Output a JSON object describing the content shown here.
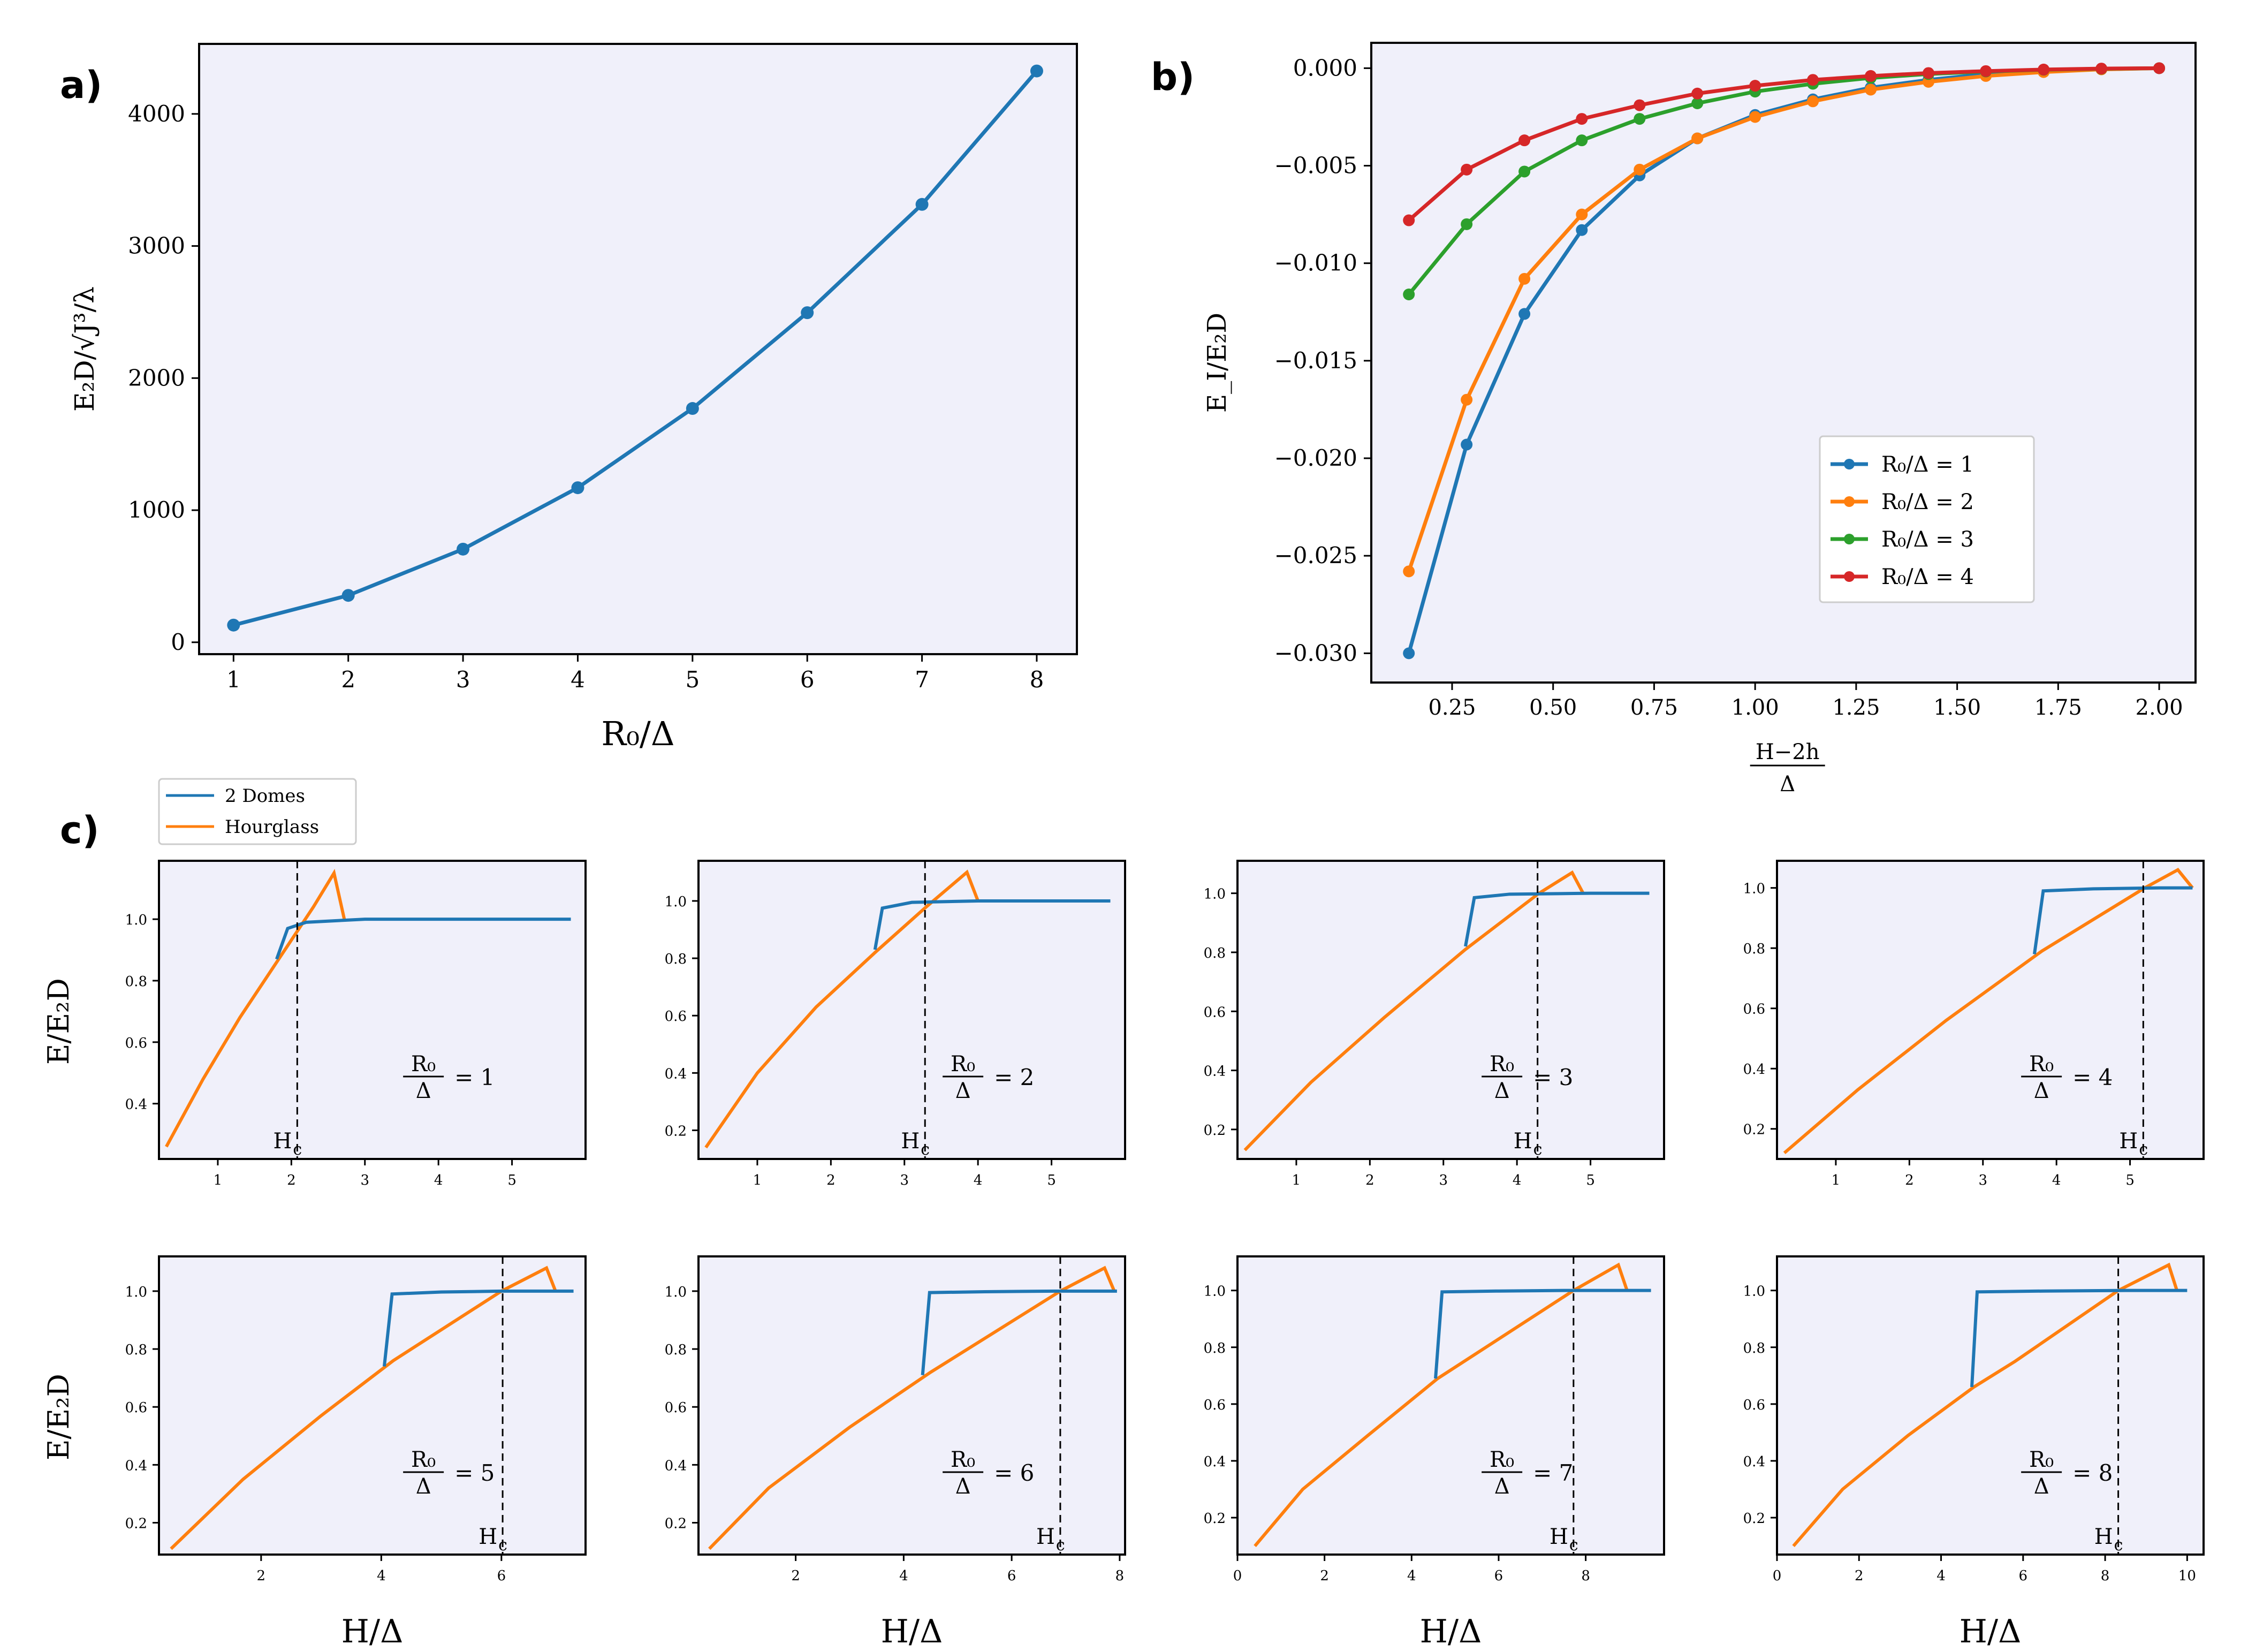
{
  "panel_labels": [
    "a)",
    "b)",
    "c)"
  ],
  "chart_data": [
    {
      "id": "a",
      "type": "line",
      "xlabel": "R₀/Δ",
      "ylabel": "E₂D/√J³/λ",
      "xlim": [
        0.7,
        8.35
      ],
      "ylim": [
        -90,
        4530
      ],
      "xticks": [
        1,
        2,
        3,
        4,
        5,
        6,
        7,
        8
      ],
      "xtick_labels": [
        "1",
        "2",
        "3",
        "4",
        "5",
        "6",
        "7",
        "8"
      ],
      "yticks": [
        0,
        1000,
        2000,
        3000,
        4000
      ],
      "ytick_labels": [
        "0",
        "1000",
        "2000",
        "3000",
        "4000"
      ],
      "series": [
        {
          "name": "E2D",
          "color": "#1f77b4",
          "x": [
            1,
            2,
            3,
            4,
            5,
            6,
            7,
            8
          ],
          "y": [
            130,
            355,
            705,
            1170,
            1770,
            2495,
            3315,
            4325
          ]
        }
      ]
    },
    {
      "id": "b",
      "type": "line",
      "xlabel_num": "H−2h",
      "xlabel_den": "Δ",
      "ylabel": "E_I/E₂D",
      "xlim": [
        0.05,
        2.09
      ],
      "ylim": [
        -0.0315,
        0.0013
      ],
      "xticks": [
        0.25,
        0.5,
        0.75,
        1.0,
        1.25,
        1.5,
        1.75,
        2.0
      ],
      "xtick_labels": [
        "0.25",
        "0.50",
        "0.75",
        "1.00",
        "1.25",
        "1.50",
        "1.75",
        "2.00"
      ],
      "yticks": [
        0,
        -0.005,
        -0.01,
        -0.015,
        -0.02,
        -0.025,
        -0.03
      ],
      "ytick_labels": [
        "0.000",
        "−0.005",
        "−0.010",
        "−0.015",
        "−0.020",
        "−0.025",
        "−0.030"
      ],
      "legend_position": "lower-right",
      "x": [
        0.143,
        0.286,
        0.429,
        0.571,
        0.714,
        0.857,
        1.0,
        1.143,
        1.286,
        1.429,
        1.571,
        1.714,
        1.857,
        2.0
      ],
      "series": [
        {
          "name": "R₀/Δ = 1",
          "color": "#1f77b4",
          "y": [
            -0.03,
            -0.0193,
            -0.0126,
            -0.0083,
            -0.0055,
            -0.0036,
            -0.0024,
            -0.0016,
            -0.001,
            -0.0006,
            -0.0003,
            -0.00015,
            -5e-05,
            0.0
          ]
        },
        {
          "name": "R₀/Δ = 2",
          "color": "#ff7f0e",
          "y": [
            -0.0258,
            -0.017,
            -0.0108,
            -0.0075,
            -0.0052,
            -0.0036,
            -0.0025,
            -0.0017,
            -0.0011,
            -0.0007,
            -0.0004,
            -0.0002,
            -6e-05,
            0.0
          ]
        },
        {
          "name": "R₀/Δ = 3",
          "color": "#2ca02c",
          "y": [
            -0.0116,
            -0.008,
            -0.0053,
            -0.0037,
            -0.0026,
            -0.0018,
            -0.0012,
            -0.0008,
            -0.0005,
            -0.0003,
            -0.00017,
            -8e-05,
            -3e-05,
            0.0
          ]
        },
        {
          "name": "R₀/Δ = 4",
          "color": "#d62728",
          "y": [
            -0.0078,
            -0.0052,
            -0.0037,
            -0.0026,
            -0.0019,
            -0.0013,
            -0.0009,
            -0.0006,
            -0.0004,
            -0.00025,
            -0.00015,
            -7e-05,
            -2e-05,
            0.0
          ]
        }
      ]
    },
    {
      "id": "c",
      "type": "line",
      "legend": [
        {
          "name": "2 Domes",
          "color": "#1f77b4"
        },
        {
          "name": "Hourglass",
          "color": "#ff7f0e"
        }
      ],
      "xlabel": "H/Δ",
      "ylabel": "E/E₂D",
      "marker_label": "H",
      "marker_sub": "c",
      "ratio_num": "R₀",
      "ratio_den": "Δ",
      "subplots": [
        {
          "r": "1",
          "xlim": [
            0.2,
            6.0
          ],
          "ylim": [
            0.22,
            1.19
          ],
          "xticks": [
            1,
            2,
            3,
            4,
            5
          ],
          "xtick_labels": [
            "1",
            "2",
            "3",
            "4",
            "5"
          ],
          "yticks": [
            0.4,
            0.6,
            0.8,
            1.0
          ],
          "ytick_labels": [
            "0.4",
            "0.6",
            "0.8",
            "1.0"
          ],
          "hc": 2.08,
          "domes": [
            [
              1.8,
              0.87
            ],
            [
              1.95,
              0.97
            ],
            [
              2.2,
              0.99
            ],
            [
              3.0,
              1.0
            ],
            [
              5.8,
              1.0
            ]
          ],
          "hourglass": [
            [
              0.3,
              0.26
            ],
            [
              0.8,
              0.48
            ],
            [
              1.3,
              0.68
            ],
            [
              1.8,
              0.86
            ],
            [
              2.3,
              1.04
            ],
            [
              2.58,
              1.15
            ],
            [
              2.72,
              1.0
            ]
          ]
        },
        {
          "r": "2",
          "xlim": [
            0.2,
            6.0
          ],
          "ylim": [
            0.1,
            1.14
          ],
          "xticks": [
            1,
            2,
            3,
            4,
            5
          ],
          "xtick_labels": [
            "1",
            "2",
            "3",
            "4",
            "5"
          ],
          "yticks": [
            0.2,
            0.4,
            0.6,
            0.8,
            1.0
          ],
          "ytick_labels": [
            "0.2",
            "0.4",
            "0.6",
            "0.8",
            "1.0"
          ],
          "hc": 3.28,
          "domes": [
            [
              2.6,
              0.83
            ],
            [
              2.7,
              0.975
            ],
            [
              3.1,
              0.995
            ],
            [
              4.0,
              1.0
            ],
            [
              5.8,
              1.0
            ]
          ],
          "hourglass": [
            [
              0.3,
              0.14
            ],
            [
              1.0,
              0.4
            ],
            [
              1.8,
              0.63
            ],
            [
              2.6,
              0.82
            ],
            [
              3.3,
              0.98
            ],
            [
              3.85,
              1.1
            ],
            [
              4.0,
              1.0
            ]
          ]
        },
        {
          "r": "3",
          "xlim": [
            0.2,
            6.0
          ],
          "ylim": [
            0.1,
            1.11
          ],
          "xticks": [
            1,
            2,
            3,
            4,
            5
          ],
          "xtick_labels": [
            "1",
            "2",
            "3",
            "4",
            "5"
          ],
          "yticks": [
            0.2,
            0.4,
            0.6,
            0.8,
            1.0
          ],
          "ytick_labels": [
            "0.2",
            "0.4",
            "0.6",
            "0.8",
            "1.0"
          ],
          "hc": 4.28,
          "domes": [
            [
              3.3,
              0.82
            ],
            [
              3.42,
              0.985
            ],
            [
              3.9,
              0.997
            ],
            [
              5.0,
              1.0
            ],
            [
              5.8,
              1.0
            ]
          ],
          "hourglass": [
            [
              0.3,
              0.13
            ],
            [
              1.2,
              0.36
            ],
            [
              2.2,
              0.58
            ],
            [
              3.3,
              0.81
            ],
            [
              4.3,
              1.0
            ],
            [
              4.75,
              1.07
            ],
            [
              4.9,
              1.0
            ]
          ]
        },
        {
          "r": "4",
          "xlim": [
            0.2,
            6.0
          ],
          "ylim": [
            0.1,
            1.09
          ],
          "xticks": [
            1,
            2,
            3,
            4,
            5
          ],
          "xtick_labels": [
            "1",
            "2",
            "3",
            "4",
            "5"
          ],
          "yticks": [
            0.2,
            0.4,
            0.6,
            0.8,
            1.0
          ],
          "ytick_labels": [
            "0.2",
            "0.4",
            "0.6",
            "0.8",
            "1.0"
          ],
          "hc": 5.18,
          "domes": [
            [
              3.7,
              0.78
            ],
            [
              3.82,
              0.99
            ],
            [
              4.5,
              0.997
            ],
            [
              5.4,
              1.0
            ],
            [
              5.85,
              1.0
            ]
          ],
          "hourglass": [
            [
              0.3,
              0.12
            ],
            [
              1.3,
              0.33
            ],
            [
              2.5,
              0.56
            ],
            [
              3.8,
              0.79
            ],
            [
              5.2,
              1.0
            ],
            [
              5.65,
              1.06
            ],
            [
              5.85,
              1.0
            ]
          ]
        },
        {
          "r": "5",
          "xlim": [
            0.3,
            7.4
          ],
          "ylim": [
            0.09,
            1.12
          ],
          "xticks": [
            2,
            4,
            6
          ],
          "xtick_labels": [
            "2",
            "4",
            "6"
          ],
          "yticks": [
            0.2,
            0.4,
            0.6,
            0.8,
            1.0
          ],
          "ytick_labels": [
            "0.2",
            "0.4",
            "0.6",
            "0.8",
            "1.0"
          ],
          "hc": 6.02,
          "domes": [
            [
              4.05,
              0.74
            ],
            [
              4.18,
              0.99
            ],
            [
              5.0,
              0.997
            ],
            [
              6.0,
              1.0
            ],
            [
              7.2,
              1.0
            ]
          ],
          "hourglass": [
            [
              0.5,
              0.11
            ],
            [
              1.7,
              0.35
            ],
            [
              3.0,
              0.57
            ],
            [
              4.2,
              0.76
            ],
            [
              6.0,
              1.0
            ],
            [
              6.75,
              1.08
            ],
            [
              6.9,
              1.0
            ]
          ]
        },
        {
          "r": "6",
          "xlim": [
            0.2,
            8.1
          ],
          "ylim": [
            0.09,
            1.12
          ],
          "xticks": [
            2,
            4,
            6,
            8
          ],
          "xtick_labels": [
            "2",
            "4",
            "6",
            "8"
          ],
          "yticks": [
            0.2,
            0.4,
            0.6,
            0.8,
            1.0
          ],
          "ytick_labels": [
            "0.2",
            "0.4",
            "0.6",
            "0.8",
            "1.0"
          ],
          "hc": 6.9,
          "domes": [
            [
              4.35,
              0.71
            ],
            [
              4.48,
              0.995
            ],
            [
              5.5,
              0.998
            ],
            [
              6.8,
              1.0
            ],
            [
              7.95,
              1.0
            ]
          ],
          "hourglass": [
            [
              0.4,
              0.11
            ],
            [
              1.5,
              0.32
            ],
            [
              3.0,
              0.53
            ],
            [
              4.5,
              0.72
            ],
            [
              6.9,
              1.0
            ],
            [
              7.72,
              1.08
            ],
            [
              7.9,
              1.0
            ]
          ]
        },
        {
          "r": "7",
          "xlim": [
            0,
            9.8
          ],
          "ylim": [
            0.07,
            1.12
          ],
          "xticks": [
            0,
            2,
            4,
            6,
            8
          ],
          "xtick_labels": [
            "0",
            "2",
            "4",
            "6",
            "8"
          ],
          "yticks": [
            0.2,
            0.4,
            0.6,
            0.8,
            1.0
          ],
          "ytick_labels": [
            "0.2",
            "0.4",
            "0.6",
            "0.8",
            "1.0"
          ],
          "hc": 7.72,
          "domes": [
            [
              4.55,
              0.69
            ],
            [
              4.7,
              0.995
            ],
            [
              6.0,
              0.998
            ],
            [
              7.5,
              1.0
            ],
            [
              9.5,
              1.0
            ]
          ],
          "hourglass": [
            [
              0.4,
              0.1
            ],
            [
              1.5,
              0.3
            ],
            [
              3.0,
              0.49
            ],
            [
              4.6,
              0.69
            ],
            [
              7.72,
              1.0
            ],
            [
              8.75,
              1.09
            ],
            [
              8.95,
              1.0
            ]
          ]
        },
        {
          "r": "8",
          "xlim": [
            0,
            10.4
          ],
          "ylim": [
            0.07,
            1.12
          ],
          "xticks": [
            0,
            2,
            4,
            6,
            8,
            10
          ],
          "xtick_labels": [
            "0",
            "2",
            "4",
            "6",
            "8",
            "10"
          ],
          "yticks": [
            0.2,
            0.4,
            0.6,
            0.8,
            1.0
          ],
          "ytick_labels": [
            "0.2",
            "0.4",
            "0.6",
            "0.8",
            "1.0"
          ],
          "hc": 8.32,
          "domes": [
            [
              4.75,
              0.66
            ],
            [
              4.88,
              0.995
            ],
            [
              6.5,
              0.998
            ],
            [
              8.5,
              1.0
            ],
            [
              10.0,
              1.0
            ]
          ],
          "hourglass": [
            [
              0.4,
              0.1
            ],
            [
              1.6,
              0.3
            ],
            [
              3.2,
              0.49
            ],
            [
              4.8,
              0.66
            ],
            [
              5.8,
              0.75
            ],
            [
              8.32,
              1.0
            ],
            [
              9.55,
              1.09
            ],
            [
              9.75,
              1.0
            ]
          ]
        }
      ]
    }
  ]
}
